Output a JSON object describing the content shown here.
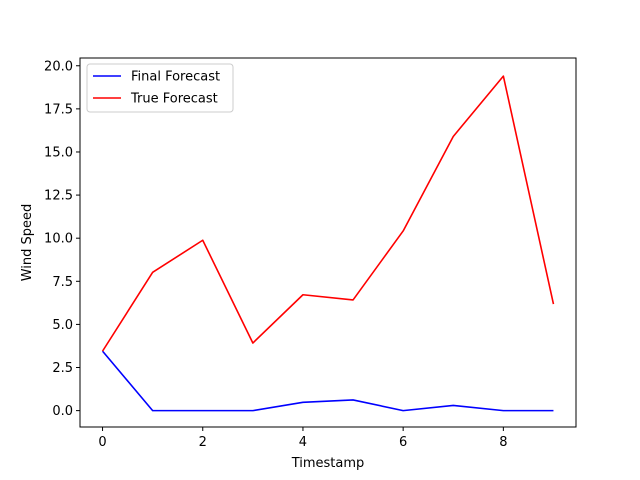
{
  "chart_data": {
    "type": "line",
    "title": "",
    "xlabel": "Timestamp",
    "ylabel": "Wind Speed",
    "x": [
      0,
      1,
      2,
      3,
      4,
      5,
      6,
      7,
      8,
      9
    ],
    "xlim": [
      -0.45,
      9.45
    ],
    "ylim": [
      -0.95,
      20.45
    ],
    "xticks": [
      0,
      2,
      4,
      6,
      8
    ],
    "xtick_labels": [
      "0",
      "2",
      "4",
      "6",
      "8"
    ],
    "yticks": [
      0,
      2.5,
      5,
      7.5,
      10,
      12.5,
      15,
      17.5,
      20
    ],
    "ytick_labels": [
      "0.0",
      "2.5",
      "5.0",
      "7.5",
      "10.0",
      "12.5",
      "15.0",
      "17.5",
      "20.0"
    ],
    "grid": false,
    "legend_position": "upper-left",
    "series": [
      {
        "name": "Final Forecast",
        "color": "#0000ff",
        "values": [
          3.45,
          0.0,
          0.0,
          0.0,
          0.48,
          0.62,
          0.0,
          0.3,
          0.0,
          0.0
        ]
      },
      {
        "name": "True Forecast",
        "color": "#ff0000",
        "values": [
          3.45,
          8.02,
          9.88,
          3.92,
          6.72,
          6.42,
          10.42,
          15.9,
          19.4,
          6.18
        ]
      }
    ]
  }
}
